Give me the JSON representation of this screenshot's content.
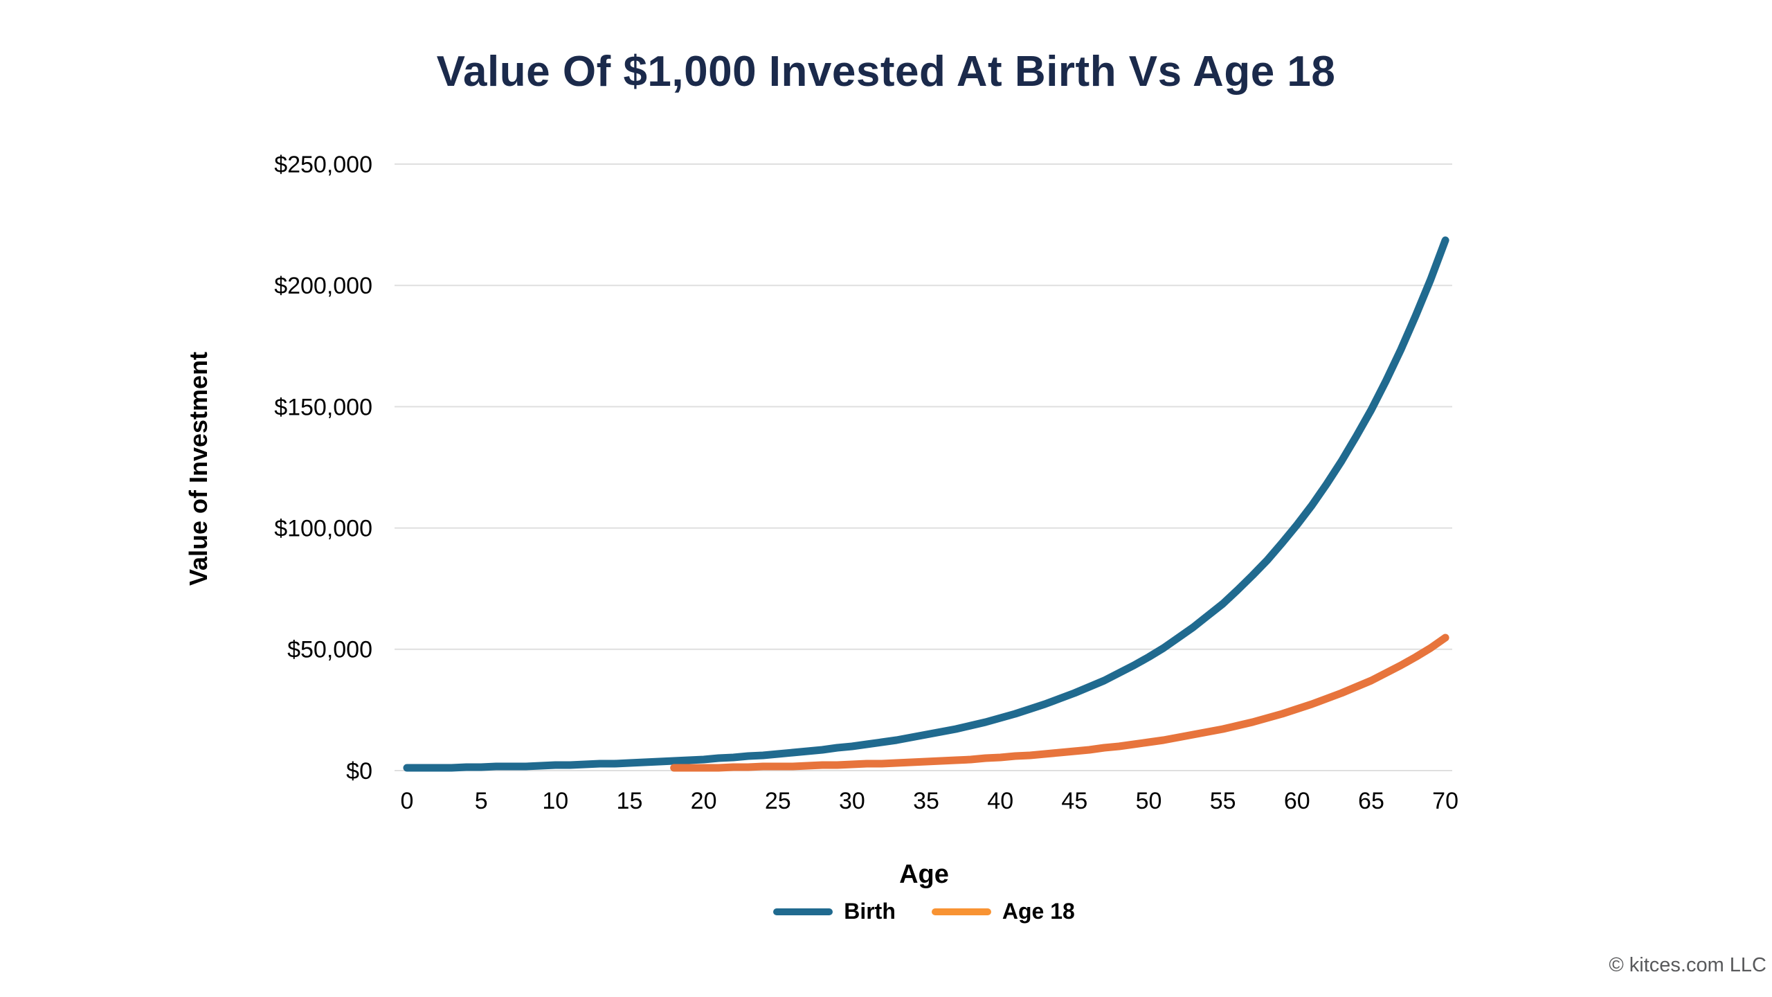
{
  "title": {
    "text": "Value Of $1,000 Invested At Birth Vs Age 18",
    "color": "#1b2a4b"
  },
  "y_axis": {
    "title": "Value of Investment",
    "tick_labels": [
      "$0",
      "$50,000",
      "$100,000",
      "$150,000",
      "$200,000",
      "$250,000"
    ],
    "tick_values": [
      0,
      50000,
      100000,
      150000,
      200000,
      250000
    ]
  },
  "x_axis": {
    "title": "Age",
    "tick_labels": [
      "0",
      "5",
      "10",
      "15",
      "20",
      "25",
      "30",
      "35",
      "40",
      "45",
      "50",
      "55",
      "60",
      "65",
      "70"
    ],
    "tick_values": [
      0,
      5,
      10,
      15,
      20,
      25,
      30,
      35,
      40,
      45,
      50,
      55,
      60,
      65,
      70
    ]
  },
  "legend": {
    "items": [
      {
        "label": "Birth",
        "color": "#206a8f"
      },
      {
        "label": "Age 18",
        "color": "#f89333"
      }
    ]
  },
  "footer": {
    "copyright": "© kitces.com LLC",
    "color": "#58595b"
  },
  "style_colors": {
    "grid": "#dfdfdf",
    "birth_line": "#206a8f",
    "age18_line": "#e7743c"
  },
  "chart_data": {
    "type": "line",
    "title": "Value Of $1,000 Invested At Birth Vs Age 18",
    "xlabel": "Age",
    "ylabel": "Value of Investment",
    "xlim": [
      0,
      70
    ],
    "ylim": [
      0,
      250000
    ],
    "x_ticks": [
      0,
      5,
      10,
      15,
      20,
      25,
      30,
      35,
      40,
      45,
      50,
      55,
      60,
      65,
      70
    ],
    "y_ticks": [
      0,
      50000,
      100000,
      150000,
      200000,
      250000
    ],
    "grid": "horizontal",
    "legend_position": "bottom",
    "series": [
      {
        "name": "Birth",
        "color": "#206a8f",
        "x": [
          0,
          1,
          2,
          3,
          4,
          5,
          6,
          7,
          8,
          9,
          10,
          11,
          12,
          13,
          14,
          15,
          16,
          17,
          18,
          19,
          20,
          21,
          22,
          23,
          24,
          25,
          26,
          27,
          28,
          29,
          30,
          31,
          32,
          33,
          34,
          35,
          36,
          37,
          38,
          39,
          40,
          41,
          42,
          43,
          44,
          45,
          46,
          47,
          48,
          49,
          50,
          51,
          52,
          53,
          54,
          55,
          56,
          57,
          58,
          59,
          60,
          61,
          62,
          63,
          64,
          65,
          66,
          67,
          68,
          69,
          70
        ],
        "values": [
          1000,
          1080,
          1166,
          1260,
          1360,
          1469,
          1587,
          1714,
          1851,
          1999,
          2159,
          2332,
          2518,
          2720,
          2937,
          3172,
          3426,
          3700,
          3996,
          4316,
          4661,
          5034,
          5437,
          5871,
          6341,
          6848,
          7396,
          7988,
          8627,
          9317,
          10063,
          10868,
          11737,
          12676,
          13690,
          14785,
          15968,
          17246,
          18625,
          20115,
          21725,
          23462,
          25339,
          27367,
          29556,
          31920,
          34474,
          37232,
          40211,
          43427,
          46902,
          50654,
          54706,
          59085,
          63811,
          68916,
          74429,
          80384,
          86815,
          93760,
          101260,
          109361,
          118110,
          127559,
          137764,
          148785,
          160688,
          173543,
          187426,
          202420,
          218614
        ]
      },
      {
        "name": "Age 18",
        "color": "#e7743c",
        "x": [
          18,
          19,
          20,
          21,
          22,
          23,
          24,
          25,
          26,
          27,
          28,
          29,
          30,
          31,
          32,
          33,
          34,
          35,
          36,
          37,
          38,
          39,
          40,
          41,
          42,
          43,
          44,
          45,
          46,
          47,
          48,
          49,
          50,
          51,
          52,
          53,
          54,
          55,
          56,
          57,
          58,
          59,
          60,
          61,
          62,
          63,
          64,
          65,
          66,
          67,
          68,
          69,
          70
        ],
        "values": [
          1000,
          1080,
          1166,
          1260,
          1360,
          1469,
          1587,
          1714,
          1851,
          1999,
          2159,
          2332,
          2518,
          2720,
          2937,
          3172,
          3426,
          3700,
          3996,
          4316,
          4661,
          5034,
          5437,
          5871,
          6341,
          6848,
          7396,
          7988,
          8627,
          9317,
          10063,
          10868,
          11737,
          12676,
          13690,
          14785,
          15968,
          17246,
          18625,
          20115,
          21725,
          23462,
          25339,
          27367,
          29556,
          31920,
          34474,
          37232,
          40211,
          43427,
          46902,
          50654,
          54706
        ]
      }
    ]
  }
}
